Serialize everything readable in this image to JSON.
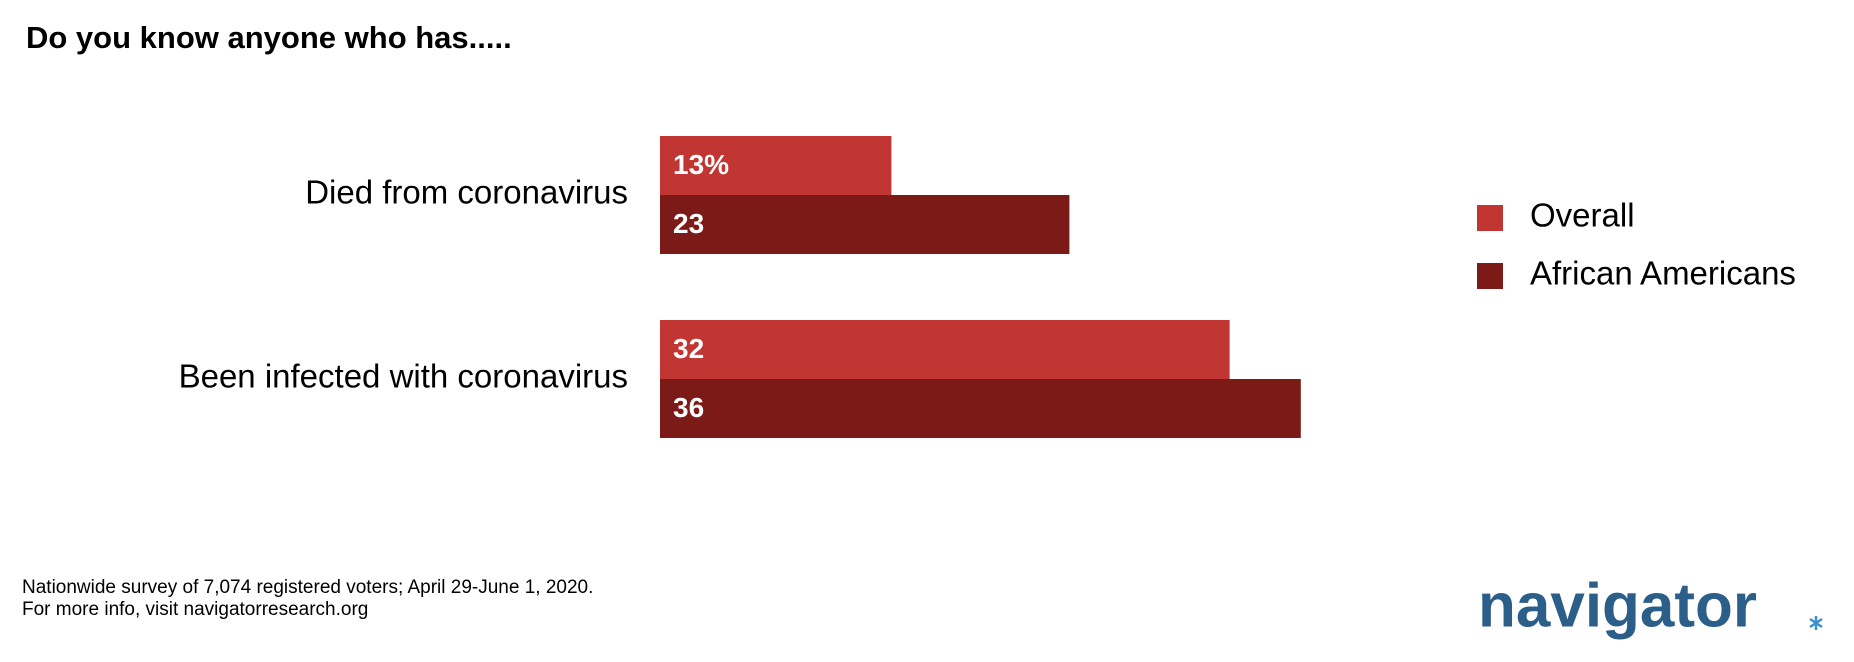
{
  "chart_data": {
    "type": "bar",
    "orientation": "horizontal",
    "title": "Do you know anyone who has.....",
    "categories": [
      "Died from coronavirus",
      "Been infected with coronavirus"
    ],
    "series": [
      {
        "name": "Overall",
        "color": "#c13532",
        "values": [
          13,
          32
        ],
        "value_labels": [
          "13%",
          "32"
        ]
      },
      {
        "name": "African Americans",
        "color": "#7b1a17",
        "values": [
          23,
          36
        ],
        "value_labels": [
          "23",
          "36"
        ]
      }
    ],
    "legend": "right"
  },
  "footer": {
    "notes": [
      "Nationwide survey of 7,074 registered voters; April 29-June 1, 2020.",
      "For more info, visit navigatorresearch.org"
    ],
    "logo": "navigator"
  }
}
